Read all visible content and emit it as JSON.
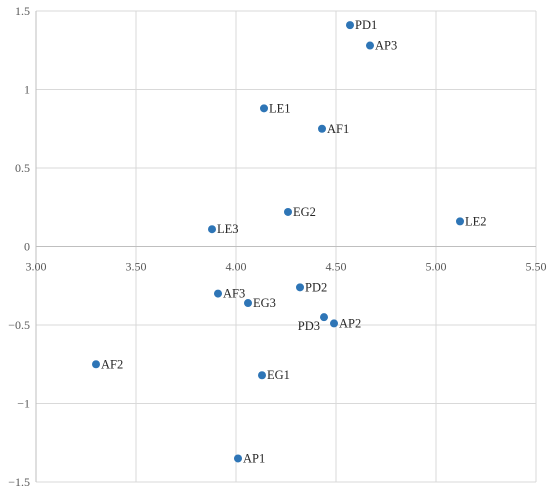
{
  "chart_data": {
    "type": "scatter",
    "title": "",
    "xlabel": "",
    "ylabel": "",
    "xlim": [
      3.0,
      5.5
    ],
    "ylim": [
      -1.5,
      1.5
    ],
    "x_ticks": [
      {
        "value": 3.0,
        "label": "3.00"
      },
      {
        "value": 3.5,
        "label": "3.50"
      },
      {
        "value": 4.0,
        "label": "4.00"
      },
      {
        "value": 4.5,
        "label": "4.50"
      },
      {
        "value": 5.0,
        "label": "5.00"
      },
      {
        "value": 5.5,
        "label": "5.50"
      }
    ],
    "y_ticks": [
      {
        "value": 1.5,
        "label": "1.5"
      },
      {
        "value": 1.0,
        "label": "1"
      },
      {
        "value": 0.5,
        "label": "0.5"
      },
      {
        "value": 0.0,
        "label": "0"
      },
      {
        "value": -0.5,
        "label": "−0.5"
      },
      {
        "value": -1.0,
        "label": "−1"
      },
      {
        "value": -1.5,
        "label": "−1.5"
      }
    ],
    "grid": true,
    "marker_color": "#2e75b6",
    "points": [
      {
        "label": "PD1",
        "x": 4.57,
        "y": 1.41,
        "label_pos": "right"
      },
      {
        "label": "AP3",
        "x": 4.67,
        "y": 1.28,
        "label_pos": "right"
      },
      {
        "label": "LE1",
        "x": 4.14,
        "y": 0.88,
        "label_pos": "right"
      },
      {
        "label": "AF1",
        "x": 4.43,
        "y": 0.75,
        "label_pos": "right"
      },
      {
        "label": "EG2",
        "x": 4.26,
        "y": 0.22,
        "label_pos": "right"
      },
      {
        "label": "LE3",
        "x": 3.88,
        "y": 0.11,
        "label_pos": "right"
      },
      {
        "label": "LE2",
        "x": 5.12,
        "y": 0.16,
        "label_pos": "right"
      },
      {
        "label": "PD2",
        "x": 4.32,
        "y": -0.26,
        "label_pos": "right"
      },
      {
        "label": "AF3",
        "x": 3.91,
        "y": -0.3,
        "label_pos": "right"
      },
      {
        "label": "EG3",
        "x": 4.06,
        "y": -0.36,
        "label_pos": "right"
      },
      {
        "label": "PD3",
        "x": 4.44,
        "y": -0.45,
        "label_pos": "below-left"
      },
      {
        "label": "AP2",
        "x": 4.49,
        "y": -0.49,
        "label_pos": "right"
      },
      {
        "label": "AF2",
        "x": 3.3,
        "y": -0.75,
        "label_pos": "right"
      },
      {
        "label": "EG1",
        "x": 4.13,
        "y": -0.82,
        "label_pos": "right"
      },
      {
        "label": "AP1",
        "x": 4.01,
        "y": -1.35,
        "label_pos": "right"
      }
    ]
  }
}
